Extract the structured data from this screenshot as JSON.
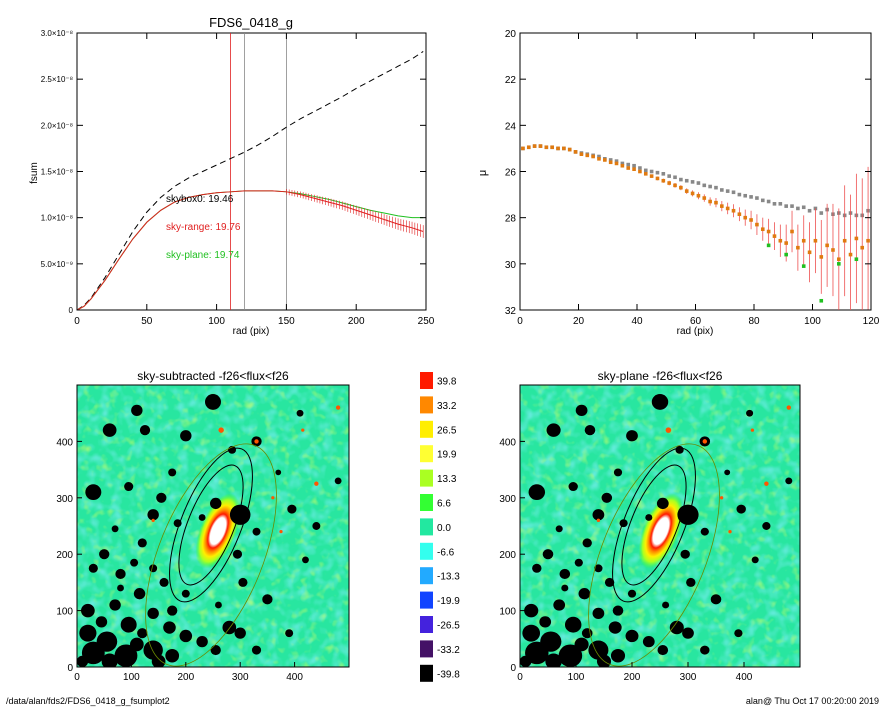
{
  "footer": {
    "path": "/data/alan/fds2/FDS6_0418_g_fsumplot2",
    "stamp": "alan@  Thu Oct 17 00:20:00 2019"
  },
  "chart_data": [
    {
      "id": "growth",
      "type": "line",
      "title": "FDS6_0418_g",
      "xlabel": "rad (pix)",
      "ylabel": "fsum",
      "xlim": [
        0,
        250
      ],
      "ylim": [
        0,
        3e-08
      ],
      "xticks": [
        "0",
        "50",
        "100",
        "150",
        "200",
        "250"
      ],
      "yticks": [
        "0",
        "5.0×10⁻⁹",
        "1.0×10⁻⁸",
        "1.5×10⁻⁸",
        "2.0×10⁻⁸",
        "2.5×10⁻⁸",
        "3.0×10⁻⁸"
      ],
      "vlines": [
        110,
        120,
        150
      ],
      "vline_colors": [
        "#e02020",
        "#888888",
        "#888888"
      ],
      "series": [
        {
          "color": "#000000",
          "dash": true,
          "x": [
            0,
            5,
            10,
            20,
            30,
            40,
            50,
            60,
            70,
            80,
            90,
            100,
            110,
            120,
            130,
            140,
            150,
            160,
            170,
            180,
            190,
            200,
            210,
            220,
            230,
            240,
            248
          ],
          "y": [
            0,
            5e-10,
            1.3e-09,
            3.5e-09,
            6e-09,
            8.5e-09,
            1.06e-08,
            1.22e-08,
            1.34e-08,
            1.43e-08,
            1.5e-08,
            1.57e-08,
            1.64e-08,
            1.71e-08,
            1.79e-08,
            1.88e-08,
            1.98e-08,
            2.07e-08,
            2.15e-08,
            2.23e-08,
            2.31e-08,
            2.4e-08,
            2.48e-08,
            2.56e-08,
            2.64e-08,
            2.72e-08,
            2.8e-08
          ]
        },
        {
          "color": "#20c020",
          "x": [
            0,
            5,
            10,
            20,
            30,
            40,
            50,
            60,
            70,
            80,
            90,
            100,
            110,
            120,
            130,
            140,
            150,
            160,
            170,
            180,
            190,
            200,
            210,
            220,
            230,
            240,
            248
          ],
          "y": [
            0,
            4e-10,
            1.2e-09,
            3.2e-09,
            5.5e-09,
            7.7e-09,
            9.5e-09,
            1.08e-08,
            1.17e-08,
            1.22e-08,
            1.25e-08,
            1.27e-08,
            1.28e-08,
            1.29e-08,
            1.29e-08,
            1.29e-08,
            1.28e-08,
            1.26e-08,
            1.23e-08,
            1.2e-08,
            1.16e-08,
            1.12e-08,
            1.08e-08,
            1.05e-08,
            1.02e-08,
            1e-08,
            1e-08
          ]
        },
        {
          "color": "#e02020",
          "errorbars": true,
          "x": [
            0,
            5,
            10,
            20,
            30,
            40,
            50,
            60,
            70,
            80,
            90,
            100,
            110,
            120,
            130,
            140,
            150,
            160,
            170,
            180,
            190,
            200,
            210,
            220,
            230,
            240,
            248
          ],
          "y": [
            0,
            4e-10,
            1.2e-09,
            3.2e-09,
            5.5e-09,
            7.7e-09,
            9.5e-09,
            1.08e-08,
            1.17e-08,
            1.22e-08,
            1.25e-08,
            1.27e-08,
            1.28e-08,
            1.29e-08,
            1.29e-08,
            1.29e-08,
            1.28e-08,
            1.25e-08,
            1.21e-08,
            1.17e-08,
            1.13e-08,
            1.08e-08,
            1.03e-08,
            9.8e-09,
            9.3e-09,
            8.9e-09,
            8.5e-09
          ]
        }
      ],
      "annotations": [
        {
          "text": "skybox0: 19.46",
          "color": "#000000",
          "x": 65,
          "y": 1.22e-08
        },
        {
          "text": "sky-range: 19.76",
          "color": "#e02020",
          "x": 65,
          "y": 9.2e-09
        },
        {
          "text": "sky-plane: 19.74",
          "color": "#20c020",
          "x": 65,
          "y": 6e-09
        }
      ]
    },
    {
      "id": "profile",
      "type": "scatter",
      "xlabel": "rad (pix)",
      "ylabel": "μ",
      "xlim": [
        0,
        120
      ],
      "ylim": [
        32,
        20
      ],
      "xticks": [
        "0",
        "20",
        "40",
        "60",
        "80",
        "100",
        "120"
      ],
      "yticks": [
        "20",
        "22",
        "24",
        "26",
        "28",
        "30",
        "32"
      ],
      "series": [
        {
          "color": "#888888",
          "x": [
            1,
            3,
            5,
            7,
            9,
            11,
            13,
            15,
            17,
            19,
            21,
            23,
            25,
            27,
            29,
            31,
            33,
            35,
            37,
            39,
            41,
            43,
            45,
            47,
            49,
            51,
            53,
            55,
            57,
            59,
            61,
            63,
            65,
            67,
            69,
            71,
            73,
            75,
            77,
            79,
            81,
            83,
            85,
            87,
            89,
            91,
            93,
            95,
            97,
            99,
            101,
            103,
            105,
            107,
            109,
            111,
            113,
            115,
            117,
            119
          ],
          "y": [
            25.0,
            24.95,
            24.9,
            24.9,
            24.95,
            24.95,
            25.0,
            25.0,
            25.05,
            25.15,
            25.2,
            25.25,
            25.3,
            25.35,
            25.45,
            25.5,
            25.55,
            25.65,
            25.7,
            25.75,
            25.85,
            25.95,
            26.0,
            26.05,
            26.1,
            26.2,
            26.25,
            26.35,
            26.4,
            26.45,
            26.5,
            26.6,
            26.65,
            26.7,
            26.8,
            26.85,
            26.9,
            27.0,
            27.05,
            27.1,
            27.15,
            27.25,
            27.3,
            27.4,
            27.4,
            27.5,
            27.5,
            27.6,
            27.55,
            27.7,
            27.6,
            27.8,
            27.65,
            27.85,
            27.8,
            27.9,
            27.8,
            27.9,
            27.9,
            27.7
          ]
        },
        {
          "color": "#e07a10",
          "errorbars": true,
          "x": [
            1,
            3,
            5,
            7,
            9,
            11,
            13,
            15,
            17,
            19,
            21,
            23,
            25,
            27,
            29,
            31,
            33,
            35,
            37,
            39,
            41,
            43,
            45,
            47,
            49,
            51,
            53,
            55,
            57,
            59,
            61,
            63,
            65,
            67,
            69,
            71,
            73,
            75,
            77,
            79,
            81,
            83,
            85,
            87,
            89,
            91,
            93,
            95,
            97,
            99,
            101,
            103,
            105,
            107,
            109,
            111,
            113,
            115,
            117,
            119
          ],
          "y": [
            25.0,
            24.95,
            24.9,
            24.9,
            24.95,
            24.95,
            25.0,
            25.0,
            25.05,
            25.15,
            25.25,
            25.3,
            25.35,
            25.45,
            25.5,
            25.6,
            25.65,
            25.75,
            25.85,
            25.9,
            26.0,
            26.1,
            26.2,
            26.3,
            26.4,
            26.5,
            26.6,
            26.7,
            26.85,
            26.95,
            27.05,
            27.15,
            27.3,
            27.35,
            27.5,
            27.6,
            27.7,
            27.85,
            28.0,
            28.1,
            28.3,
            28.5,
            28.6,
            28.8,
            29.0,
            29.1,
            28.6,
            29.3,
            29.0,
            29.5,
            29.0,
            29.7,
            29.2,
            29.4,
            29.8,
            29.0,
            29.6,
            28.9,
            29.3,
            29.0
          ],
          "err": [
            0.02,
            0.02,
            0.02,
            0.02,
            0.02,
            0.02,
            0.02,
            0.02,
            0.02,
            0.03,
            0.03,
            0.03,
            0.03,
            0.04,
            0.04,
            0.04,
            0.05,
            0.05,
            0.05,
            0.06,
            0.06,
            0.07,
            0.07,
            0.08,
            0.09,
            0.1,
            0.1,
            0.11,
            0.12,
            0.13,
            0.15,
            0.16,
            0.18,
            0.2,
            0.22,
            0.25,
            0.28,
            0.3,
            0.35,
            0.4,
            0.45,
            0.5,
            0.55,
            0.6,
            0.7,
            0.8,
            0.9,
            1.0,
            1.1,
            1.3,
            1.4,
            1.6,
            1.8,
            2.0,
            2.2,
            2.4,
            2.6,
            2.8,
            3.0,
            3.2
          ]
        },
        {
          "color": "#20c020",
          "x": [
            85,
            91,
            97,
            103,
            109,
            115
          ],
          "y": [
            29.2,
            29.6,
            30.1,
            31.6,
            30.0,
            29.8
          ]
        }
      ]
    },
    {
      "id": "sky-subtracted",
      "type": "heatmap",
      "title": "sky-subtracted -f26<flux<f26",
      "xlim": [
        0,
        500
      ],
      "ylim": [
        0,
        500
      ],
      "xticks": [
        "0",
        "100",
        "200",
        "300",
        "400"
      ],
      "yticks": [
        "0",
        "100",
        "200",
        "300",
        "400"
      ]
    },
    {
      "id": "sky-plane",
      "type": "heatmap",
      "title": "sky-plane -f26<flux<f26",
      "xlim": [
        0,
        500
      ],
      "ylim": [
        0,
        500
      ],
      "xticks": [
        "0",
        "100",
        "200",
        "300",
        "400"
      ],
      "yticks": [
        "0",
        "100",
        "200",
        "300",
        "400"
      ]
    },
    {
      "id": "colorbar",
      "type": "table",
      "levels": [
        "39.8",
        "33.2",
        "26.5",
        "19.9",
        "13.3",
        "6.6",
        "0.0",
        "-6.6",
        "-13.3",
        "-19.9",
        "-26.5",
        "-33.2",
        "-39.8"
      ],
      "colors": [
        "#ff1a00",
        "#ff8800",
        "#ffee00",
        "#ffff33",
        "#aaff22",
        "#33ff33",
        "#22e8a0",
        "#33ffee",
        "#22aaff",
        "#1144ff",
        "#4422dd",
        "#441166",
        "#000000"
      ]
    }
  ],
  "masks": {
    "blobs": [
      [
        110,
        455,
        10
      ],
      [
        125,
        420,
        9
      ],
      [
        250,
        470,
        14
      ],
      [
        200,
        410,
        10
      ],
      [
        285,
        385,
        7
      ],
      [
        330,
        400,
        9
      ],
      [
        60,
        420,
        12
      ],
      [
        95,
        320,
        8
      ],
      [
        30,
        310,
        14
      ],
      [
        155,
        300,
        9
      ],
      [
        175,
        345,
        7
      ],
      [
        300,
        270,
        18
      ],
      [
        255,
        290,
        10
      ],
      [
        230,
        265,
        6
      ],
      [
        140,
        270,
        10
      ],
      [
        185,
        255,
        7
      ],
      [
        120,
        220,
        8
      ],
      [
        70,
        245,
        6
      ],
      [
        50,
        200,
        9
      ],
      [
        30,
        175,
        8
      ],
      [
        80,
        165,
        9
      ],
      [
        105,
        185,
        7
      ],
      [
        140,
        175,
        7
      ],
      [
        160,
        150,
        8
      ],
      [
        200,
        130,
        7
      ],
      [
        115,
        130,
        10
      ],
      [
        175,
        100,
        9
      ],
      [
        295,
        200,
        8
      ],
      [
        330,
        240,
        7
      ],
      [
        305,
        150,
        8
      ],
      [
        395,
        280,
        8
      ],
      [
        440,
        250,
        7
      ],
      [
        420,
        190,
        6
      ],
      [
        350,
        120,
        9
      ],
      [
        410,
        450,
        6
      ],
      [
        370,
        345,
        5
      ],
      [
        480,
        330,
        6
      ],
      [
        20,
        100,
        12
      ],
      [
        70,
        110,
        10
      ],
      [
        140,
        95,
        10
      ],
      [
        95,
        75,
        14
      ],
      [
        170,
        70,
        11
      ],
      [
        200,
        55,
        11
      ],
      [
        230,
        45,
        10
      ],
      [
        280,
        70,
        12
      ],
      [
        300,
        60,
        10
      ],
      [
        255,
        30,
        9
      ],
      [
        330,
        30,
        8
      ],
      [
        390,
        60,
        7
      ],
      [
        20,
        60,
        15
      ],
      [
        55,
        45,
        18
      ],
      [
        30,
        25,
        20
      ],
      [
        90,
        20,
        20
      ],
      [
        140,
        30,
        17
      ],
      [
        175,
        20,
        12
      ],
      [
        110,
        40,
        12
      ],
      [
        60,
        10,
        14
      ],
      [
        150,
        10,
        12
      ],
      [
        10,
        10,
        10
      ],
      [
        45,
        80,
        10
      ],
      [
        120,
        60,
        9
      ],
      [
        80,
        140,
        6
      ],
      [
        260,
        110,
        6
      ]
    ],
    "hot": [
      [
        265,
        420,
        5
      ],
      [
        330,
        400,
        4
      ],
      [
        440,
        325,
        4
      ],
      [
        480,
        460,
        4
      ],
      [
        415,
        420,
        3
      ],
      [
        375,
        240,
        3
      ],
      [
        140,
        260,
        3
      ],
      [
        360,
        300,
        3
      ]
    ]
  }
}
